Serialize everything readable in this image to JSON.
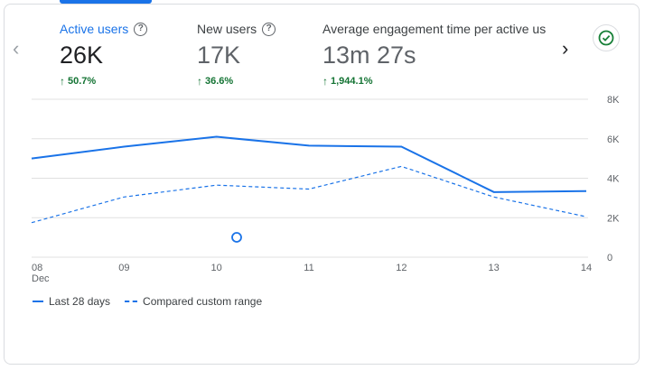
{
  "metrics": [
    {
      "label": "Active users",
      "value": "26K",
      "delta": "50.7%",
      "active": true
    },
    {
      "label": "New users",
      "value": "17K",
      "delta": "36.6%",
      "active": false
    },
    {
      "label": "Average engagement time per active us",
      "value": "13m 27s",
      "delta": "1,944.1%",
      "active": false
    }
  ],
  "icons": {
    "nav_prev": "chevron-left-icon",
    "nav_next": "chevron-right-icon",
    "status": "check-circle-icon",
    "help": "help-circle-icon",
    "delta": "arrow-up-icon"
  },
  "colors": {
    "accent": "#1a73e8",
    "positive": "#137333",
    "status": "#188038"
  },
  "legend": {
    "current": "Last 28 days",
    "compare": "Compared custom range"
  },
  "chart_data": {
    "type": "line",
    "categories": [
      "08",
      "09",
      "10",
      "11",
      "12",
      "13",
      "14"
    ],
    "x_sublabel": "Dec",
    "yticks": [
      "8K",
      "6K",
      "4K",
      "2K",
      "0"
    ],
    "ylim": [
      0,
      8000
    ],
    "y_axis_side": "right",
    "grid": true,
    "series": [
      {
        "name": "Last 28 days",
        "style": "solid",
        "values": [
          5000,
          5600,
          6100,
          5650,
          5600,
          3300,
          3350
        ]
      },
      {
        "name": "Compared custom range",
        "style": "dashed",
        "values": [
          1750,
          3050,
          3650,
          3450,
          4600,
          3050,
          2050
        ]
      }
    ],
    "legend_position": "bottom-left"
  }
}
